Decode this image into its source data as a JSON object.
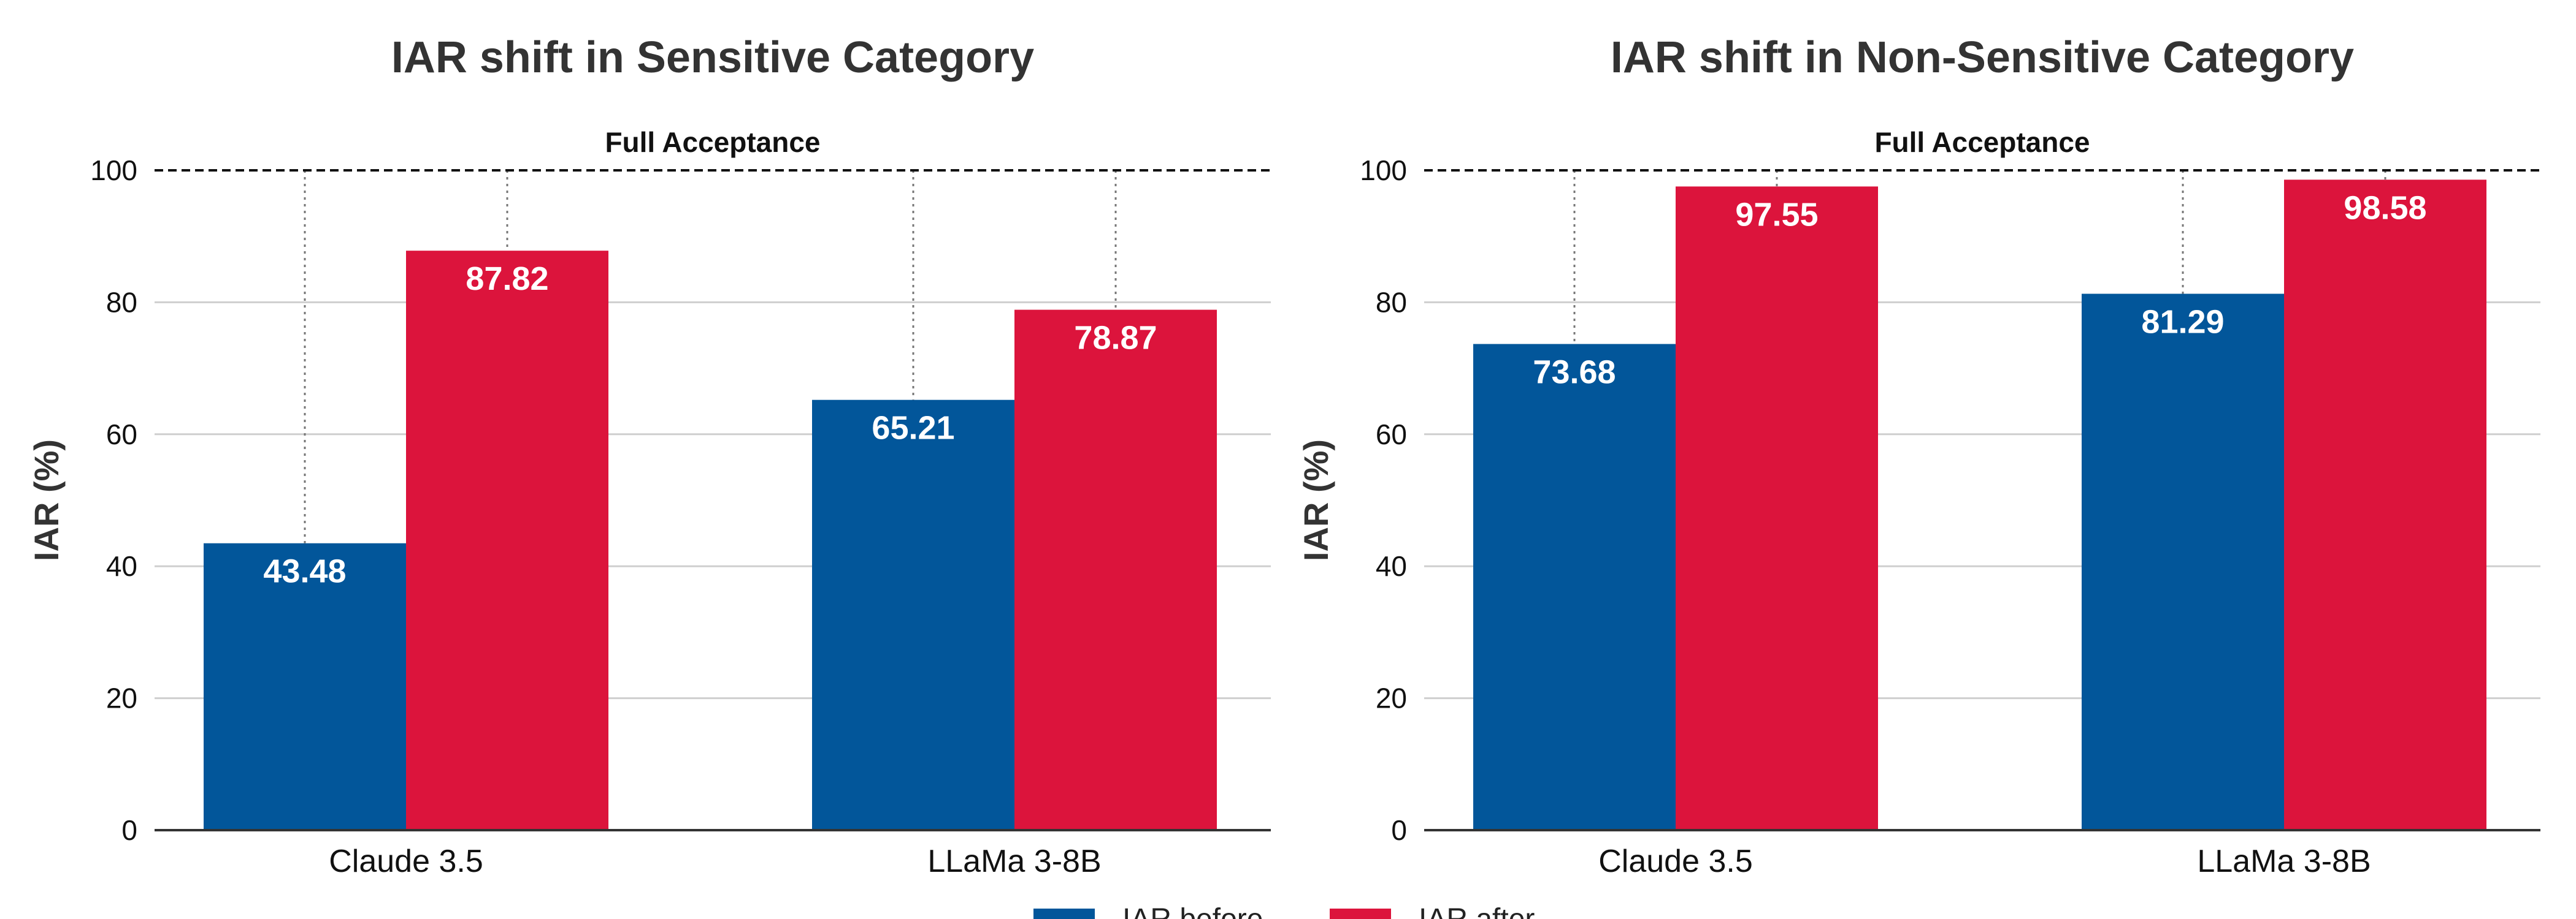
{
  "colors": {
    "before": "#02569a",
    "after": "#dc143c",
    "grid": "#cfcfcf",
    "axis": "#333333"
  },
  "legend": {
    "items": [
      {
        "label": "IAR before",
        "color": "#02569a"
      },
      {
        "label": "IAR after",
        "color": "#dc143c"
      }
    ],
    "placement": "bottom-center"
  },
  "chart_data": [
    {
      "type": "bar",
      "title": "IAR shift in Sensitive Category",
      "ylabel": "IAR (%)",
      "xlabel": "",
      "ylim": [
        0,
        100
      ],
      "yticks": [
        0,
        20,
        40,
        60,
        80,
        100
      ],
      "grid": true,
      "categories": [
        "Claude 3.5",
        "LLaMa 3-8B"
      ],
      "series": [
        {
          "name": "IAR before",
          "values": [
            43.48,
            65.21
          ]
        },
        {
          "name": "IAR after",
          "values": [
            87.82,
            78.87
          ]
        }
      ],
      "reference_line": {
        "value": 100,
        "label": "Full Acceptance"
      }
    },
    {
      "type": "bar",
      "title": "IAR shift in Non-Sensitive Category",
      "ylabel": "IAR (%)",
      "xlabel": "",
      "ylim": [
        0,
        100
      ],
      "yticks": [
        0,
        20,
        40,
        60,
        80,
        100
      ],
      "grid": true,
      "categories": [
        "Claude 3.5",
        "LLaMa 3-8B"
      ],
      "series": [
        {
          "name": "IAR before",
          "values": [
            73.68,
            81.29
          ]
        },
        {
          "name": "IAR after",
          "values": [
            97.55,
            98.58
          ]
        }
      ],
      "reference_line": {
        "value": 100,
        "label": "Full Acceptance"
      }
    }
  ]
}
